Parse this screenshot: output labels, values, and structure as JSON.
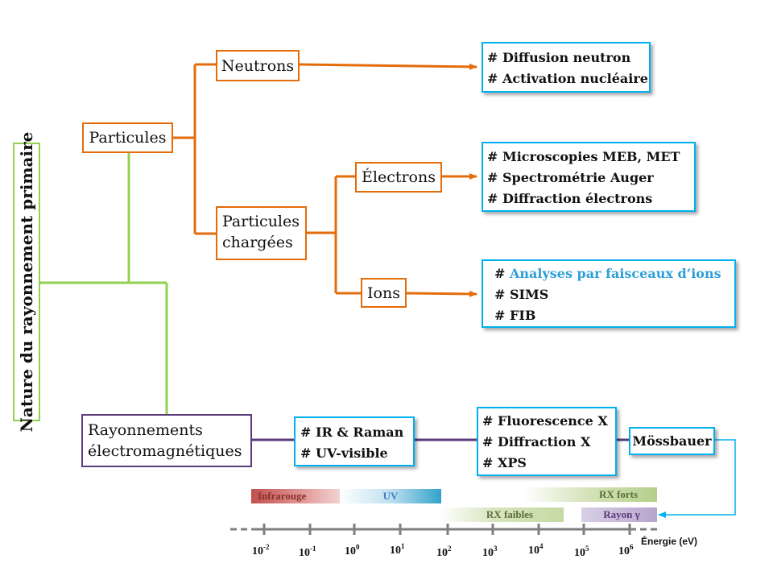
{
  "root": {
    "label": "Nature du rayonnement primaire"
  },
  "particles": {
    "label": "Particules",
    "neutrons": {
      "label": "Neutrons",
      "techniques": [
        "# Diffusion neutron",
        "# Activation nucléaire"
      ]
    },
    "charged": {
      "label_line1": "Particules",
      "label_line2": "chargées",
      "electrons": {
        "label": "Électrons",
        "techniques": [
          "# Microscopies MEB, MET",
          "# Spectrométrie Auger",
          "# Diffraction électrons"
        ]
      },
      "ions": {
        "label": "Ions",
        "technique_prefix": "# ",
        "technique_highlight": "Analyses par faisceaux d’ions",
        "techniques": [
          "# SIMS",
          "# FIB"
        ]
      }
    }
  },
  "em": {
    "label_line1": "Rayonnements",
    "label_line2": "électromagnétiques",
    "group1": [
      "# IR & Raman",
      "# UV-visible"
    ],
    "group2": [
      "# Fluorescence X",
      "# Diffraction X",
      "# XPS"
    ],
    "group3": "Mössbauer"
  },
  "spectrum": {
    "bands": {
      "infrarouge": "Infrarouge",
      "uv": "UV",
      "rx_forts": "RX forts",
      "rx_faibles": "RX faibles",
      "rayon_gamma": "Rayon γ"
    },
    "ticks": [
      {
        "base": "10",
        "exp": "-2"
      },
      {
        "base": "10",
        "exp": "-1"
      },
      {
        "base": "10",
        "exp": "0"
      },
      {
        "base": "10",
        "exp": "1"
      },
      {
        "base": "10",
        "exp": "2"
      },
      {
        "base": "10",
        "exp": "3"
      },
      {
        "base": "10",
        "exp": "4"
      },
      {
        "base": "10",
        "exp": "5"
      },
      {
        "base": "10",
        "exp": "6"
      }
    ],
    "unit": "Énergie (eV)"
  },
  "colors": {
    "orange": "#E46C0A",
    "green": "#92D050",
    "purple": "#5C3B7A",
    "blue": "#00B0F0",
    "axis": "#7F7F7F"
  }
}
